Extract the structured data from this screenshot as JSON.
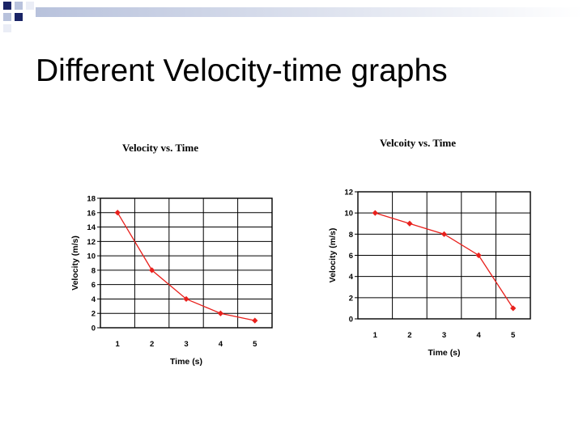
{
  "slide": {
    "title": "Different Velocity-time graphs"
  },
  "colors": {
    "series": "#e8201c",
    "grid": "#000000",
    "deco_dark": "#1a2466",
    "deco_light": "#b8c2dc",
    "deco_fade": "#eaedf6"
  },
  "chart_data": [
    {
      "type": "line",
      "title": "Velocity vs. Time",
      "xlabel": "Time (s)",
      "ylabel": "Velocity (m/s)",
      "x": [
        1,
        2,
        3,
        4,
        5
      ],
      "series": [
        {
          "values": [
            16,
            8,
            4,
            2,
            1
          ]
        }
      ],
      "xticks": [
        1,
        2,
        3,
        4,
        5
      ],
      "yticks": [
        0,
        2,
        4,
        6,
        8,
        10,
        12,
        14,
        16,
        18
      ],
      "ylim": [
        0,
        18
      ],
      "grid": true,
      "marker": "diamond"
    },
    {
      "type": "line",
      "title": "Velcoity vs. Time",
      "xlabel": "Time (s)",
      "ylabel": "Velocity (m/s)",
      "x": [
        1,
        2,
        3,
        4,
        5
      ],
      "series": [
        {
          "values": [
            10,
            9,
            8,
            6,
            1
          ]
        }
      ],
      "xticks": [
        1,
        2,
        3,
        4,
        5
      ],
      "yticks": [
        0,
        2,
        4,
        6,
        8,
        10,
        12
      ],
      "ylim": [
        0,
        12
      ],
      "grid": true,
      "marker": "diamond"
    }
  ]
}
